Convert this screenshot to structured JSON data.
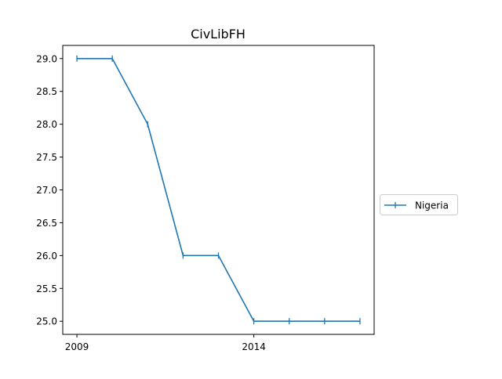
{
  "chart_data": {
    "type": "line",
    "title": "CivLibFH",
    "xlabel": "",
    "ylabel": "",
    "x": [
      2009,
      2010,
      2011,
      2012,
      2013,
      2014,
      2015,
      2016,
      2017
    ],
    "series": [
      {
        "name": "Nigeria",
        "color": "#1f77b4",
        "marker": "vertical-line",
        "values": [
          29.0,
          29.0,
          28.0,
          26.0,
          26.0,
          25.0,
          25.0,
          25.0,
          25.0
        ]
      }
    ],
    "xlim": [
      2008.6,
      2017.4
    ],
    "ylim": [
      24.8,
      29.2
    ],
    "xticks": [
      2009,
      2014
    ],
    "xtick_labels": [
      "2009",
      "2014"
    ],
    "yticks": [
      25.0,
      25.5,
      26.0,
      26.5,
      27.0,
      27.5,
      28.0,
      28.5,
      29.0
    ],
    "ytick_labels": [
      "25.0",
      "25.5",
      "26.0",
      "26.5",
      "27.0",
      "27.5",
      "28.0",
      "28.5",
      "29.0"
    ],
    "grid": false,
    "legend_position": "outside right, center"
  }
}
